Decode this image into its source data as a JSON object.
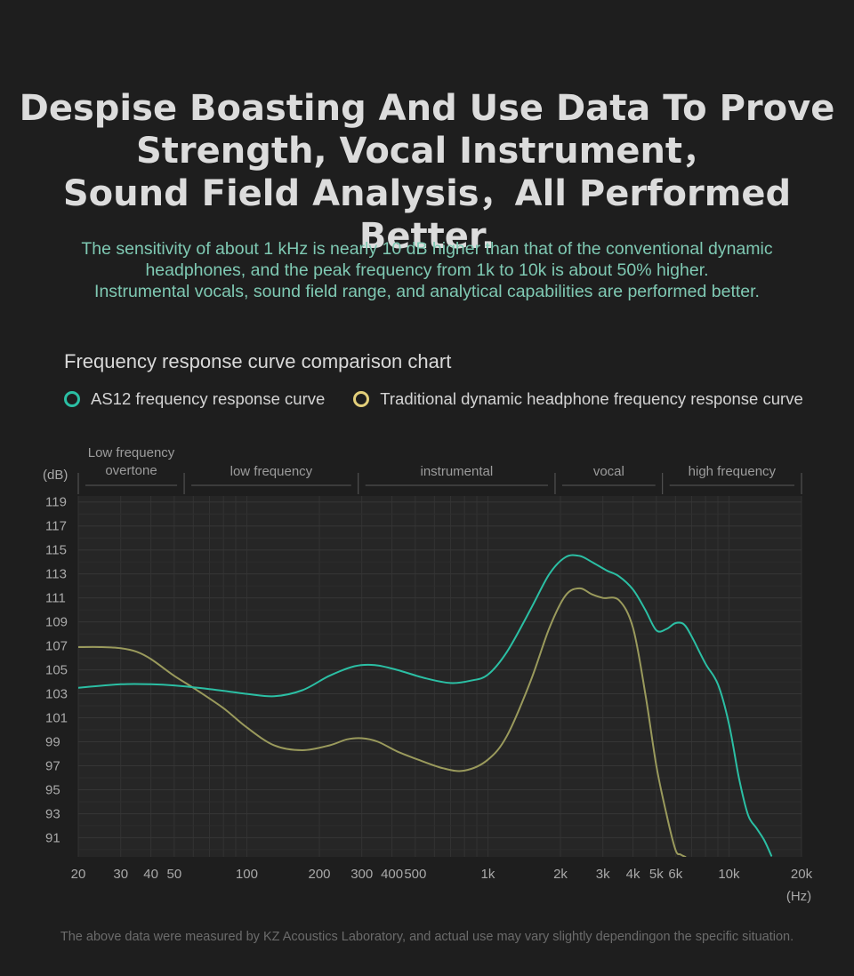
{
  "header": {
    "headline": [
      "Despise Boasting And Use Data To Prove",
      "Strength, Vocal Instrument，",
      "Sound Field Analysis，All Performed Better."
    ],
    "intro": [
      "The sensitivity of about 1 kHz is nearly 10 dB higher than that of the conventional dynamic",
      "headphones, and the peak frequency from 1k to 10k is about 50% higher.",
      "Instrumental vocals, sound field range, and analytical capabilities are performed better."
    ]
  },
  "colors": {
    "background": "#1e1e1e",
    "as12": "#2bbfa4",
    "traditional": "#9a9a5c",
    "legend_traditional_dot": "#e3cf7a",
    "intro_text": "#7fc9b3"
  },
  "footnote": "The above data were measured by KZ Acoustics Laboratory, and actual use may vary slightly dependingon the specific situation.",
  "chart_data": {
    "type": "line",
    "title": "Frequency response curve comparison chart",
    "xlabel": "(Hz)",
    "ylabel": "(dB)",
    "x_scale": "log",
    "xlim": [
      20,
      20000
    ],
    "ylim": [
      89.4,
      119.5
    ],
    "grid": true,
    "legend_position": "top-left",
    "x_ticks": [
      {
        "value": 20,
        "label": "20"
      },
      {
        "value": 30,
        "label": "30"
      },
      {
        "value": 40,
        "label": "40"
      },
      {
        "value": 50,
        "label": "50"
      },
      {
        "value": 100,
        "label": "100"
      },
      {
        "value": 200,
        "label": "200"
      },
      {
        "value": 300,
        "label": "300"
      },
      {
        "value": 400,
        "label": "400"
      },
      {
        "value": 500,
        "label": "500"
      },
      {
        "value": 1000,
        "label": "1k"
      },
      {
        "value": 2000,
        "label": "2k"
      },
      {
        "value": 3000,
        "label": "3k"
      },
      {
        "value": 4000,
        "label": "4k"
      },
      {
        "value": 5000,
        "label": "5k"
      },
      {
        "value": 6000,
        "label": "6k"
      },
      {
        "value": 10000,
        "label": "10k"
      },
      {
        "value": 20000,
        "label": "20k"
      }
    ],
    "y_ticks": [
      91,
      93,
      95,
      97,
      99,
      101,
      103,
      105,
      107,
      109,
      111,
      113,
      115,
      117,
      119
    ],
    "bands": [
      {
        "label": "Low frequency overtone",
        "from": 20,
        "to": 55
      },
      {
        "label": "low frequency",
        "from": 55,
        "to": 290
      },
      {
        "label": "instrumental",
        "from": 290,
        "to": 1900
      },
      {
        "label": "vocal",
        "from": 1900,
        "to": 5300
      },
      {
        "label": "high frequency",
        "from": 5300,
        "to": 20000
      }
    ],
    "series": [
      {
        "name": "AS12 frequency response curve",
        "x": [
          20,
          30,
          40,
          50,
          70,
          100,
          130,
          170,
          220,
          280,
          340,
          420,
          550,
          700,
          850,
          1000,
          1200,
          1500,
          1800,
          2100,
          2400,
          2700,
          3100,
          3500,
          4000,
          4500,
          5000,
          5500,
          6000,
          6500,
          7000,
          8000,
          9000,
          10000,
          11000,
          12000,
          13000,
          14000,
          15000
        ],
        "y": [
          103.5,
          103.8,
          103.8,
          103.7,
          103.4,
          103.0,
          102.8,
          103.3,
          104.5,
          105.3,
          105.4,
          105.0,
          104.3,
          103.9,
          104.1,
          104.6,
          106.5,
          110.0,
          113.0,
          114.4,
          114.5,
          114.0,
          113.3,
          112.8,
          111.7,
          110.0,
          108.3,
          108.4,
          108.9,
          108.8,
          107.8,
          105.5,
          103.8,
          100.5,
          96.0,
          92.9,
          91.8,
          90.8,
          89.5
        ]
      },
      {
        "name": "Traditional dynamic headphone frequency response curve",
        "x": [
          20,
          25,
          30,
          35,
          40,
          50,
          60,
          80,
          100,
          130,
          170,
          220,
          260,
          300,
          350,
          420,
          500,
          650,
          800,
          1000,
          1200,
          1500,
          1800,
          2100,
          2400,
          2700,
          3000,
          3500,
          4000,
          4500,
          5000,
          5500,
          6000,
          6300,
          6600
        ],
        "y": [
          106.9,
          106.9,
          106.8,
          106.5,
          105.9,
          104.5,
          103.5,
          101.8,
          100.2,
          98.7,
          98.3,
          98.7,
          99.2,
          99.3,
          99.0,
          98.2,
          97.6,
          96.8,
          96.6,
          97.5,
          99.5,
          104.0,
          108.5,
          111.2,
          111.8,
          111.3,
          111.0,
          110.8,
          108.5,
          103.0,
          97.0,
          93.0,
          90.0,
          89.6,
          89.4
        ]
      }
    ]
  }
}
